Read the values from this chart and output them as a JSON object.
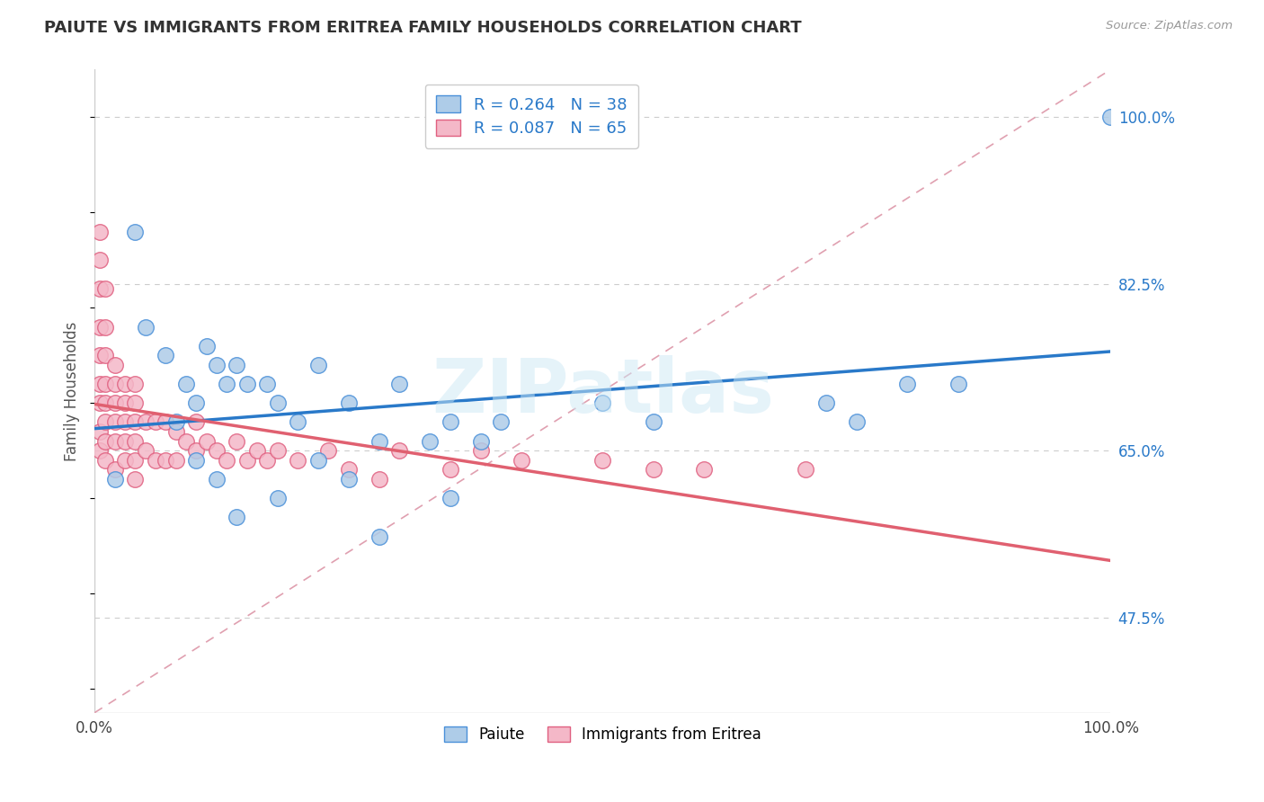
{
  "title": "PAIUTE VS IMMIGRANTS FROM ERITREA FAMILY HOUSEHOLDS CORRELATION CHART",
  "source": "Source: ZipAtlas.com",
  "ylabel": "Family Households",
  "watermark": "ZIPatlas",
  "xmin": 0.0,
  "xmax": 1.0,
  "ymin": 0.375,
  "ymax": 1.05,
  "ytick_vals": [
    0.475,
    0.65,
    0.825,
    1.0
  ],
  "ytick_labels": [
    "47.5%",
    "65.0%",
    "82.5%",
    "100.0%"
  ],
  "xtick_vals": [
    0.0,
    0.25,
    0.5,
    0.75,
    1.0
  ],
  "xtick_labels": [
    "0.0%",
    "",
    "",
    "",
    "100.0%"
  ],
  "legend_r1": "R = 0.264",
  "legend_n1": "N = 38",
  "legend_r2": "R = 0.087",
  "legend_n2": "N = 65",
  "blue_fill": "#aecce8",
  "blue_edge": "#4a90d9",
  "pink_fill": "#f4b8c8",
  "pink_edge": "#e06080",
  "blue_line": "#2979c9",
  "pink_line": "#e06070",
  "ref_line_color": "#e0a0b0",
  "paiute_x": [
    0.02,
    0.04,
    0.05,
    0.07,
    0.08,
    0.09,
    0.1,
    0.11,
    0.12,
    0.13,
    0.14,
    0.15,
    0.17,
    0.18,
    0.2,
    0.22,
    0.25,
    0.28,
    0.3,
    0.33,
    0.35,
    0.38,
    0.4,
    0.5,
    0.55,
    0.72,
    0.75,
    0.8,
    0.85,
    1.0,
    0.1,
    0.12,
    0.14,
    0.18,
    0.22,
    0.25,
    0.28,
    0.35
  ],
  "paiute_y": [
    0.62,
    0.88,
    0.78,
    0.75,
    0.68,
    0.72,
    0.7,
    0.76,
    0.74,
    0.72,
    0.74,
    0.72,
    0.72,
    0.7,
    0.68,
    0.74,
    0.7,
    0.66,
    0.72,
    0.66,
    0.68,
    0.66,
    0.68,
    0.7,
    0.68,
    0.7,
    0.68,
    0.72,
    0.72,
    1.0,
    0.64,
    0.62,
    0.58,
    0.6,
    0.64,
    0.62,
    0.56,
    0.6
  ],
  "eritrea_x": [
    0.005,
    0.005,
    0.005,
    0.005,
    0.005,
    0.005,
    0.005,
    0.005,
    0.005,
    0.01,
    0.01,
    0.01,
    0.01,
    0.01,
    0.01,
    0.01,
    0.01,
    0.02,
    0.02,
    0.02,
    0.02,
    0.02,
    0.02,
    0.03,
    0.03,
    0.03,
    0.03,
    0.03,
    0.04,
    0.04,
    0.04,
    0.04,
    0.04,
    0.04,
    0.05,
    0.05,
    0.06,
    0.06,
    0.07,
    0.07,
    0.08,
    0.08,
    0.09,
    0.1,
    0.1,
    0.11,
    0.12,
    0.13,
    0.14,
    0.15,
    0.16,
    0.17,
    0.18,
    0.2,
    0.23,
    0.25,
    0.28,
    0.3,
    0.35,
    0.38,
    0.42,
    0.5,
    0.55,
    0.6,
    0.7
  ],
  "eritrea_y": [
    0.88,
    0.85,
    0.82,
    0.78,
    0.75,
    0.72,
    0.7,
    0.67,
    0.65,
    0.82,
    0.78,
    0.75,
    0.72,
    0.7,
    0.68,
    0.66,
    0.64,
    0.74,
    0.72,
    0.7,
    0.68,
    0.66,
    0.63,
    0.72,
    0.7,
    0.68,
    0.66,
    0.64,
    0.72,
    0.7,
    0.68,
    0.66,
    0.64,
    0.62,
    0.68,
    0.65,
    0.68,
    0.64,
    0.68,
    0.64,
    0.67,
    0.64,
    0.66,
    0.68,
    0.65,
    0.66,
    0.65,
    0.64,
    0.66,
    0.64,
    0.65,
    0.64,
    0.65,
    0.64,
    0.65,
    0.63,
    0.62,
    0.65,
    0.63,
    0.65,
    0.64,
    0.64,
    0.63,
    0.63,
    0.63
  ],
  "ref_line_x": [
    0.0,
    1.0
  ],
  "ref_line_y": [
    0.375,
    1.05
  ]
}
